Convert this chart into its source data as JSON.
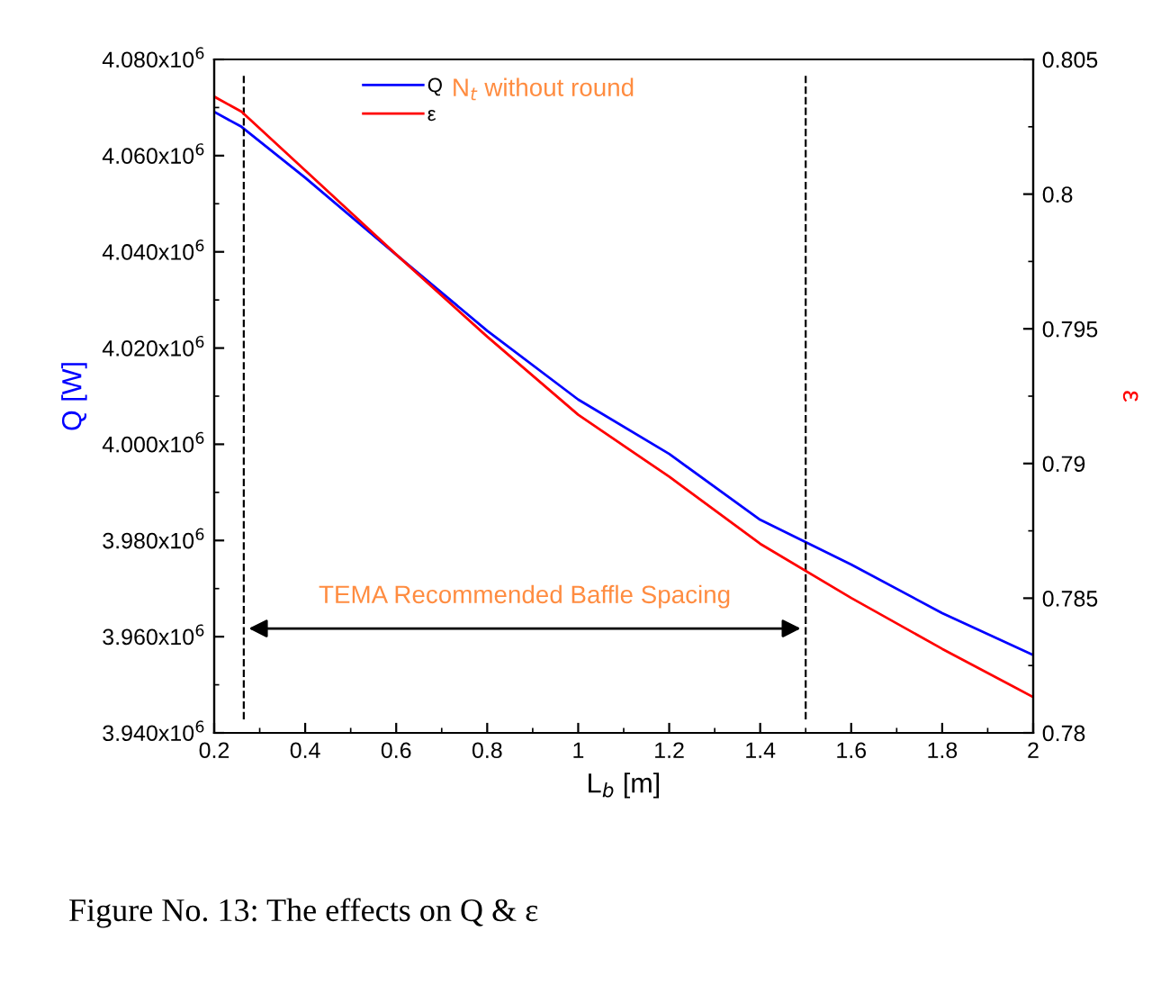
{
  "chart_data": {
    "type": "line",
    "xlabel": "L$_{b}$ [m]",
    "ylabel": "Q [W]",
    "y2label": "ε",
    "x": [
      0.2,
      0.26,
      0.4,
      0.6,
      0.8,
      1.0,
      1.2,
      1.4,
      1.6,
      1.8,
      2.0
    ],
    "series": [
      {
        "name": "Q",
        "color": "#0000ff",
        "values": [
          4069100,
          4066000,
          4055400,
          4039400,
          4023600,
          4009300,
          3998000,
          3984300,
          3975000,
          3964900,
          3956200
        ]
      },
      {
        "name": "ε",
        "color": "#ff0000",
        "axis": "y2",
        "values": [
          0.80362,
          0.80306,
          0.80088,
          0.79776,
          0.79471,
          0.79181,
          0.78951,
          0.78702,
          0.78501,
          0.78312,
          0.78133
        ]
      }
    ],
    "xlim": [
      0.2,
      2
    ],
    "xticks": [
      0.2,
      0.4,
      0.6,
      0.8,
      1,
      1.2,
      1.4,
      1.6,
      1.8,
      2
    ],
    "ylim": [
      3940000,
      4080000
    ],
    "yticks": [
      {
        "value": 3940000,
        "label": "3.940x10$^{6}$"
      },
      {
        "value": 3960000,
        "label": "3.960x10$^{6}$"
      },
      {
        "value": 3980000,
        "label": "3.980x10$^{6}$"
      },
      {
        "value": 4000000,
        "label": "4.000x10$^{6}$"
      },
      {
        "value": 4020000,
        "label": "4.020x10$^{6}$"
      },
      {
        "value": 4040000,
        "label": "4.040x10$^{6}$"
      },
      {
        "value": 4060000,
        "label": "4.060x10$^{6}$"
      },
      {
        "value": 4080000,
        "label": "4.080x10$^{6}$"
      }
    ],
    "y2lim": [
      0.78,
      0.805
    ],
    "y2ticks": [
      0.78,
      0.785,
      0.79,
      0.795,
      0.8,
      0.805
    ],
    "ref_lines": [
      {
        "axis": "x",
        "value": 0.265,
        "color": "#000000",
        "line_style": "dashed"
      },
      {
        "axis": "x",
        "value": 1.5,
        "color": "#000000",
        "line_style": "dashed"
      }
    ],
    "annotations": [
      "N$_{t}$ without round",
      "TEMA Recommended Baffle Spacing",
      "Figure No. 13: The effects on Q & ε"
    ],
    "legend": "top",
    "grid": false,
    "marker": "none",
    "line_style": "solid"
  }
}
